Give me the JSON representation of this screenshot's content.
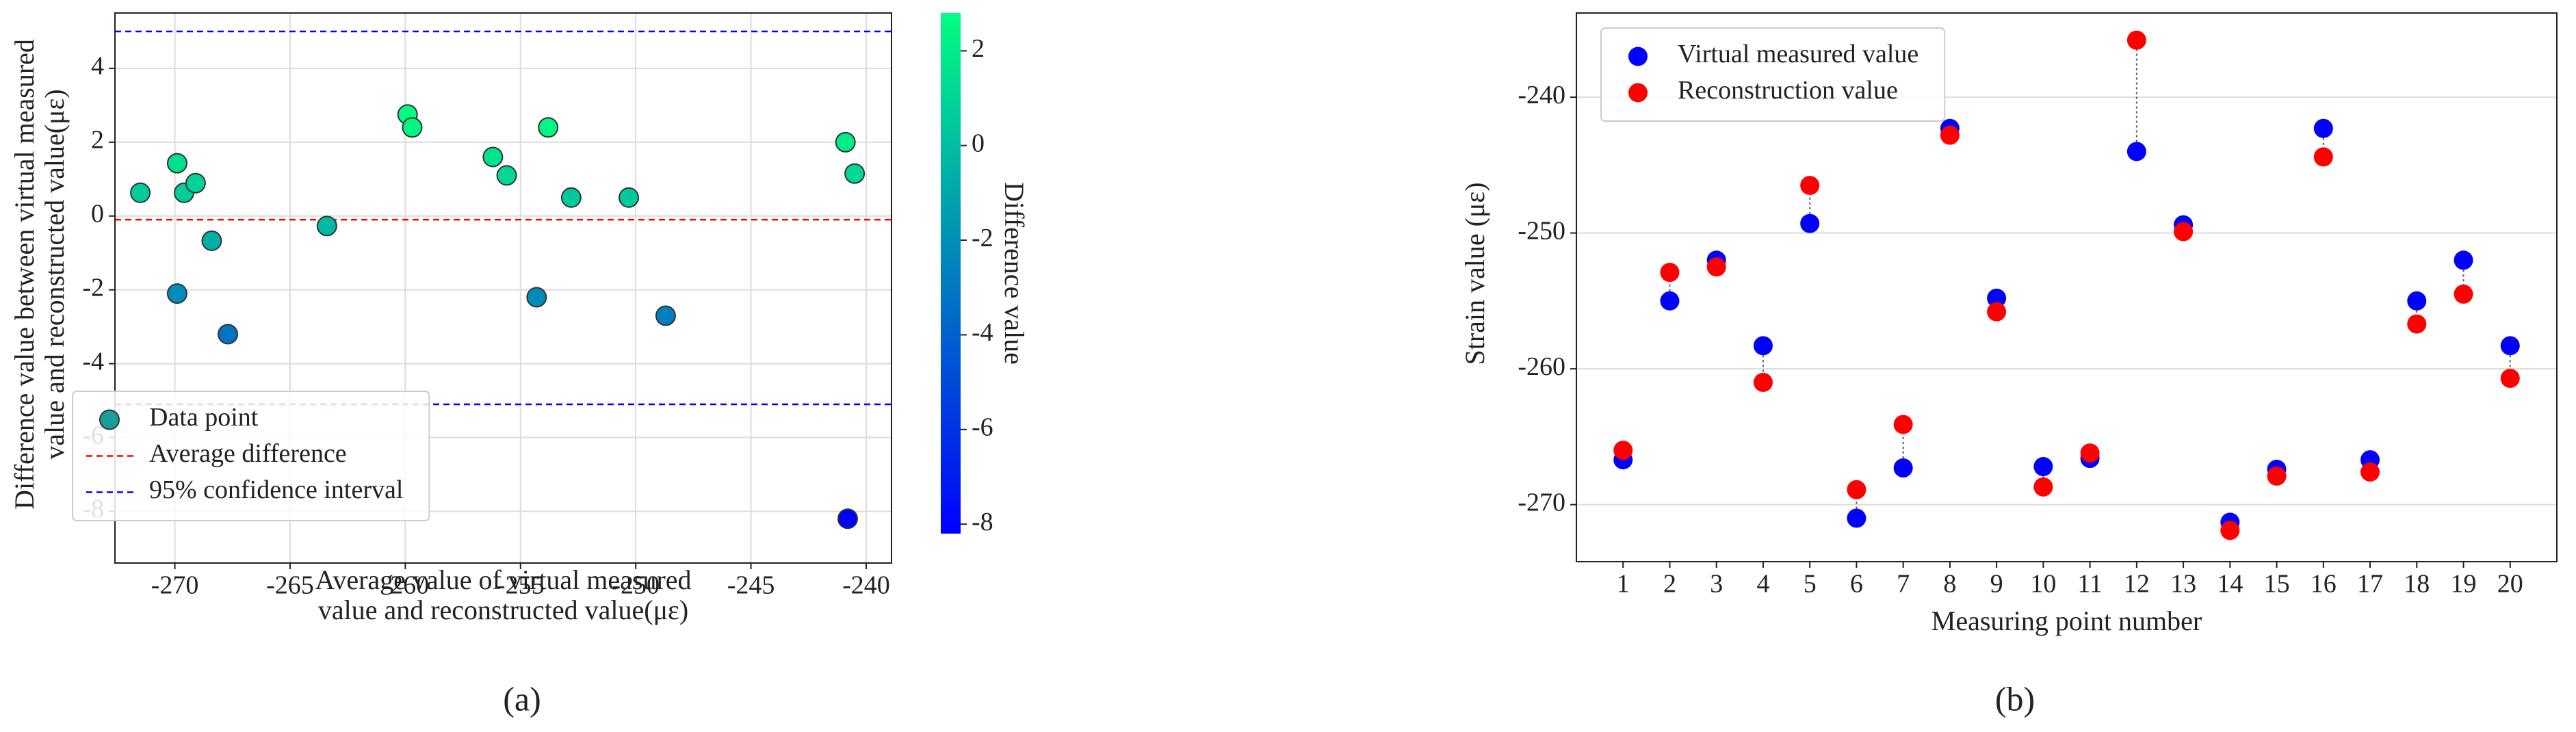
{
  "chart_data": [
    {
      "type": "scatter",
      "panel_label": "(a)",
      "xlabel": [
        "Average value of virtual measured",
        "value and reconstructed value(με)"
      ],
      "ylabel": [
        "Difference value between virtual measured",
        "value and reconstructed value(με)"
      ],
      "series": [
        {
          "name": "Data point",
          "color": "#1a9e9a",
          "x": [
            -271.5,
            -269.9,
            -269.9,
            -269.6,
            -269.1,
            -268.4,
            -267.7,
            -263.4,
            -259.9,
            -259.7,
            -256.2,
            -255.6,
            -254.3,
            -253.8,
            -252.8,
            -250.3,
            -248.7,
            -240.9,
            -240.5,
            -240.8
          ],
          "values": [
            0.63,
            -2.1,
            1.43,
            0.63,
            0.89,
            -0.67,
            -3.2,
            -0.27,
            2.75,
            2.4,
            1.6,
            1.1,
            -2.2,
            2.4,
            0.5,
            0.5,
            -2.7,
            2.0,
            1.15,
            -8.2
          ]
        }
      ],
      "average_difference": {
        "name": "Average difference",
        "value": -0.1,
        "color": "#ff0000"
      },
      "confidence_interval": {
        "name": "95% confidence interval",
        "values": [
          5.0,
          -5.1
        ],
        "color": "#0000ff"
      },
      "xlim": [
        -272.6,
        -238.9
      ],
      "xticks": [
        -270,
        -265,
        -260,
        -255,
        -250,
        -245,
        -240
      ],
      "ylim": [
        -9.4,
        5.5
      ],
      "yticks": [
        -8,
        -6,
        -4,
        -2,
        0,
        2,
        4
      ],
      "grid": true,
      "legend": "lower left",
      "colorbar": {
        "label": "Difference value",
        "lim": [
          -8.2,
          2.8
        ],
        "ticks": [
          -8,
          -6,
          -4,
          -2,
          0,
          2
        ],
        "colors": [
          "#0000ff",
          "#00ff80"
        ]
      }
    },
    {
      "type": "dot",
      "panel_label": "(b)",
      "xlabel": "Measuring point number",
      "ylabel": "Strain value (με)",
      "categories": [
        "1",
        "2",
        "3",
        "4",
        "5",
        "6",
        "7",
        "8",
        "9",
        "10",
        "11",
        "12",
        "13",
        "14",
        "15",
        "16",
        "17",
        "18",
        "19",
        "20"
      ],
      "series": [
        {
          "name": "Virtual measured value",
          "color": "#0000ff",
          "values": [
            -266.7,
            -255.0,
            -252.0,
            -258.3,
            -249.3,
            -271.0,
            -267.3,
            -242.3,
            -254.8,
            -267.2,
            -266.6,
            -244.0,
            -249.4,
            -271.3,
            -267.4,
            -242.3,
            -266.7,
            -255.0,
            -252.0,
            -258.3
          ]
        },
        {
          "name": "Reconstruction value",
          "color": "#ff0000",
          "values": [
            -266.0,
            -252.9,
            -252.5,
            -261.0,
            -246.5,
            -268.9,
            -264.1,
            -242.8,
            -255.8,
            -268.7,
            -266.2,
            -235.8,
            -249.9,
            -271.9,
            -267.9,
            -244.4,
            -267.6,
            -256.7,
            -254.5,
            -260.7
          ]
        }
      ],
      "ylim": [
        -274.2,
        -233.8
      ],
      "yticks": [
        -270,
        -260,
        -250,
        -240
      ],
      "grid": "y",
      "legend": "upper left"
    }
  ]
}
